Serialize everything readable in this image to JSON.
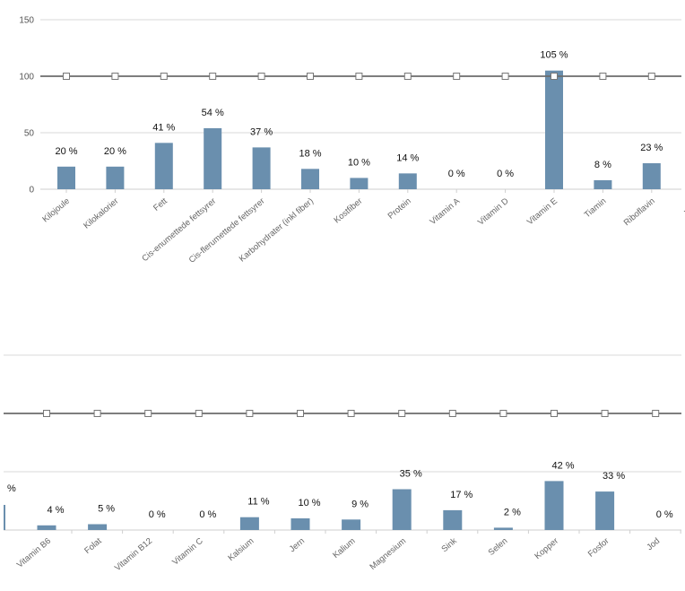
{
  "chart_data": [
    {
      "type": "bar",
      "ylim": [
        0,
        150
      ],
      "yticks": [
        0,
        50,
        100,
        150
      ],
      "grid": true,
      "reference_value": 100,
      "bar_color": "#6a8fae",
      "reference_line_color": "#6b6b6b",
      "categories": [
        "Kilojoule",
        "Kilokalorier",
        "Fett",
        "Cis-enumettede fettsyrer",
        "Cis-flerumettede fettsyrer",
        "Karbohydrater (inkl fiber)",
        "Kostfiber",
        "Protein",
        "Vitamin A",
        "Vitamin D",
        "Vitamin E",
        "Tiamin",
        "Riboflavin",
        "Vitam"
      ],
      "values": [
        20,
        20,
        41,
        54,
        37,
        18,
        10,
        14,
        0,
        0,
        105,
        8,
        23,
        null
      ],
      "data_labels": [
        "20 %",
        "20 %",
        "41 %",
        "54 %",
        "37 %",
        "18 %",
        "10 %",
        "14 %",
        "0 %",
        "0 %",
        "105 %",
        "8 %",
        "23 %",
        ""
      ]
    },
    {
      "type": "bar",
      "ylim": [
        0,
        150
      ],
      "grid": true,
      "reference_value": 100,
      "bar_color": "#6a8fae",
      "reference_line_color": "#6b6b6b",
      "partial_label": "%",
      "categories": [
        "Vitamin B6",
        "Folat",
        "Vitamin B12",
        "Vitamin C",
        "Kalsium",
        "Jern",
        "Kalium",
        "Magnesium",
        "Sink",
        "Selen",
        "Kopper",
        "Fosfor",
        "Jod"
      ],
      "values": [
        4,
        5,
        0,
        0,
        11,
        10,
        9,
        35,
        17,
        2,
        42,
        33,
        0
      ],
      "data_labels": [
        "4 %",
        "5 %",
        "0 %",
        "0 %",
        "11 %",
        "10 %",
        "9 %",
        "35 %",
        "17 %",
        "2 %",
        "42 %",
        "33 %",
        "0 %"
      ]
    }
  ]
}
